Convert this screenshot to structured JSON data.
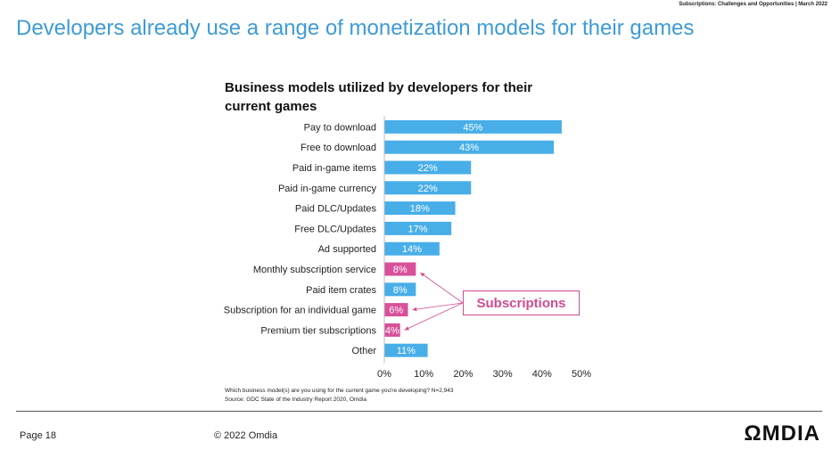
{
  "header": {
    "note": "Subscriptions: Challenges and Opportunities | March 2022"
  },
  "slide": {
    "title": "Developers already use a range of monetization models for their games"
  },
  "chart_data": {
    "type": "bar",
    "orientation": "horizontal",
    "title": "Business models utilized by developers for their current games",
    "categories": [
      "Pay to download",
      "Free to download",
      "Paid in-game items",
      "Paid in-game currency",
      "Paid DLC/Updates",
      "Free DLC/Updates",
      "Ad supported",
      "Monthly subscription service",
      "Paid item crates",
      "Subscription for an individual game",
      "Premium tier subscriptions",
      "Other"
    ],
    "values": [
      45,
      43,
      22,
      22,
      18,
      17,
      14,
      8,
      8,
      6,
      4,
      11
    ],
    "data_labels": [
      "45%",
      "43%",
      "22%",
      "22%",
      "18%",
      "17%",
      "14%",
      "8%",
      "8%",
      "6%",
      "4%",
      "11%"
    ],
    "highlighted": [
      "Monthly subscription service",
      "Subscription for an individual game",
      "Premium tier subscriptions"
    ],
    "colors": {
      "default": "#48aee8",
      "highlight": "#d9509a"
    },
    "xlim": [
      0,
      50
    ],
    "xticks": [
      "0%",
      "10%",
      "20%",
      "30%",
      "40%",
      "50%"
    ],
    "xlabel": "",
    "ylabel": "",
    "annotation": "Subscriptions",
    "annotation_color": "#d24b8f"
  },
  "footnotes": {
    "question": "Which business model(s) are you using for the current game you're developing? N=2,943",
    "source": "Source: GDC State of the Industry Report 2020, Omdia"
  },
  "footer": {
    "page": "Page 18",
    "copyright": "© 2022 Omdia",
    "logo": "ΩMDIA"
  }
}
